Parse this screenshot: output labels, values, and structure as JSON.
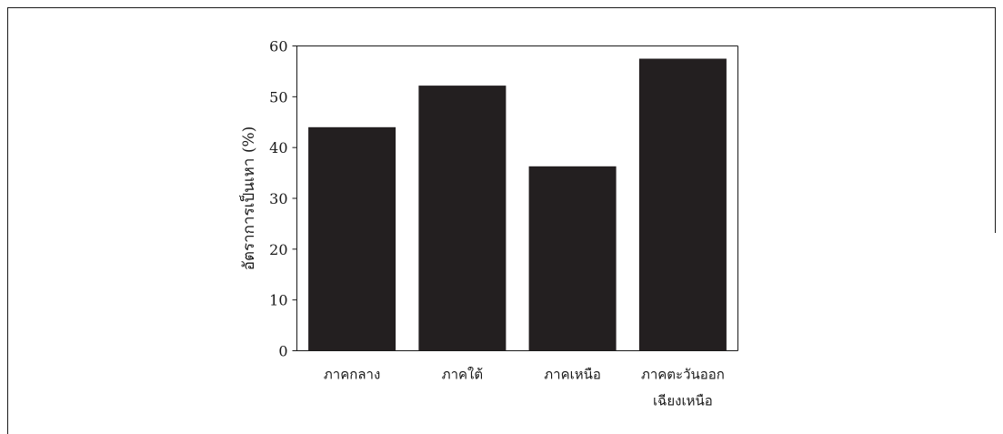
{
  "chart_data": {
    "type": "bar",
    "title": "",
    "xlabel": "",
    "ylabel": "อัตราการเป็นเหา (%)",
    "ylim": [
      0,
      60
    ],
    "yticks": [
      0,
      10,
      20,
      30,
      40,
      50,
      60
    ],
    "grid": false,
    "legend": "none",
    "categories": [
      [
        "ภาคกลาง"
      ],
      [
        "ภาคใต้"
      ],
      [
        "ภาคเหนือ"
      ],
      [
        "ภาคตะวันออก",
        "เฉียงเหนือ"
      ]
    ],
    "values": [
      44,
      52.2,
      36.3,
      57.5
    ],
    "bar_color": "#231f20",
    "axis_color": "#1a1a1a",
    "frame_color": "#1a1a1a"
  }
}
